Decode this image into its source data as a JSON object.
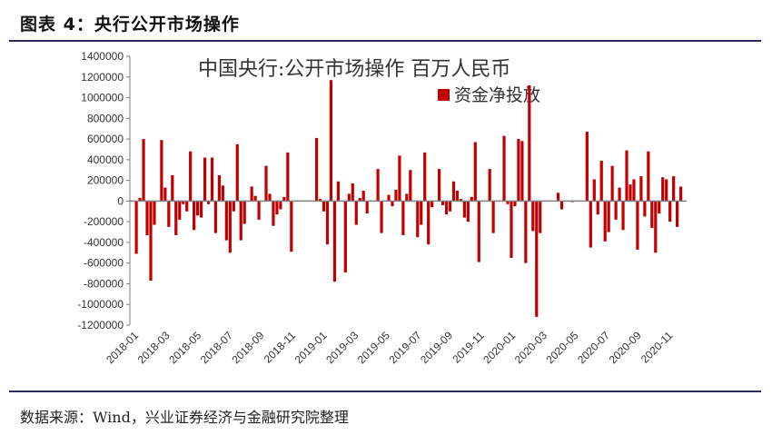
{
  "header": {
    "title": "图表 4：央行公开市场操作"
  },
  "footer": {
    "source": "数据来源：Wind，兴业证券经济与金融研究院整理"
  },
  "colors": {
    "bar": "#c00000",
    "axis": "#7f7f7f",
    "rule": "#2b2a5a"
  },
  "chart_data": {
    "type": "bar",
    "title": "中国央行:公开市场操作 百万人民币",
    "legend": [
      "资金净投放"
    ],
    "legend_position": "top-right",
    "ylim": [
      -1200000,
      1400000
    ],
    "yticks": [
      1400000,
      1200000,
      1000000,
      800000,
      600000,
      400000,
      200000,
      0,
      -200000,
      -400000,
      -600000,
      -800000,
      -1000000,
      -1200000
    ],
    "xticks": [
      "2018-01",
      "2018-03",
      "2018-05",
      "2018-07",
      "2018-09",
      "2018-11",
      "2019-01",
      "2019-03",
      "2019-05",
      "2019-07",
      "2019-09",
      "2019-11",
      "2020-01",
      "2020-03",
      "2020-05",
      "2020-07",
      "2020-09",
      "2020-11"
    ],
    "series": [
      {
        "name": "资金净投放",
        "values": [
          -510000,
          30000,
          600000,
          -330000,
          -770000,
          -230000,
          0,
          590000,
          130000,
          -250000,
          250000,
          -330000,
          -180000,
          -30000,
          -100000,
          480000,
          -280000,
          -140000,
          -160000,
          420000,
          -30000,
          420000,
          -310000,
          250000,
          150000,
          -380000,
          -500000,
          -100000,
          550000,
          -380000,
          -220000,
          0,
          140000,
          50000,
          -180000,
          0,
          340000,
          70000,
          -240000,
          -130000,
          -80000,
          40000,
          470000,
          -490000,
          0,
          0,
          0,
          0,
          0,
          0,
          610000,
          20000,
          -100000,
          -420000,
          1170000,
          -780000,
          190000,
          0,
          -690000,
          70000,
          170000,
          -230000,
          30000,
          100000,
          -120000,
          0,
          0,
          310000,
          -310000,
          0,
          60000,
          -50000,
          110000,
          440000,
          -330000,
          70000,
          300000,
          0,
          -350000,
          -230000,
          470000,
          -420000,
          -60000,
          0,
          310000,
          -40000,
          -130000,
          -100000,
          190000,
          100000,
          20000,
          -160000,
          -200000,
          40000,
          570000,
          -590000,
          0,
          0,
          310000,
          -310000,
          0,
          0,
          630000,
          -30000,
          -550000,
          -50000,
          600000,
          580000,
          -600000,
          1120000,
          -290000,
          -1120000,
          -310000,
          0,
          0,
          0,
          0,
          80000,
          -80000,
          0,
          0,
          -10000,
          0,
          0,
          0,
          670000,
          -450000,
          210000,
          -130000,
          390000,
          -390000,
          -300000,
          340000,
          -180000,
          130000,
          -280000,
          490000,
          160000,
          210000,
          -470000,
          240000,
          -150000,
          480000,
          -260000,
          -500000,
          -120000,
          230000,
          210000,
          -200000,
          240000,
          -250000,
          140000
        ]
      }
    ]
  }
}
